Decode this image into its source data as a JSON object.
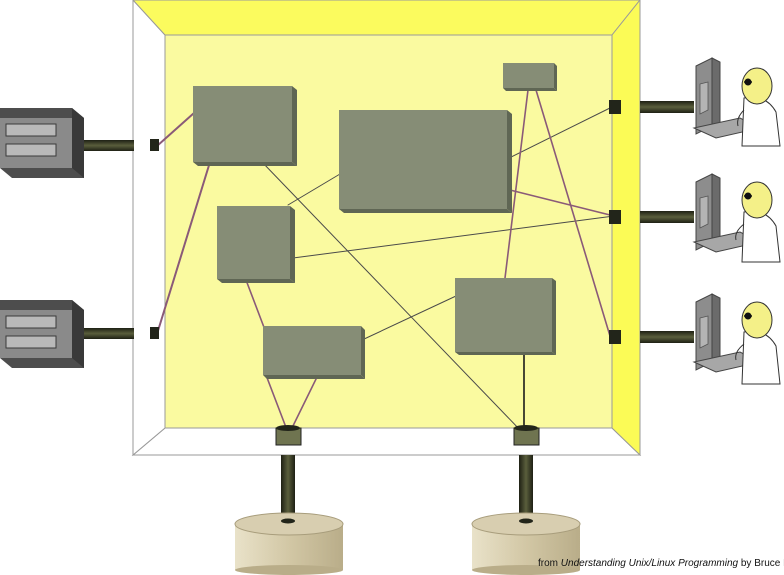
{
  "credit": {
    "prefix": "from",
    "book_title": "Understanding Unix/Linux Programming",
    "by": "by",
    "author": "Bruce Molay"
  },
  "colors": {
    "box_back_wall": "#fafaa0",
    "box_top_wall": "#fbfb5e",
    "box_right_wall": "#fbfb56",
    "box_floor": "#ffffff",
    "module_front": "#868d76",
    "module_side": "#5f6654",
    "connector_line_purple": "#8a5a78",
    "connector_line_grey": "#4a4a4a",
    "drum": "#d8ceb0",
    "cable": "#2f3222"
  },
  "icons": {
    "disk_drive": "disk-drive-icon",
    "terminal_user": "user-at-terminal-icon",
    "disk_platter": "disk-platter-icon"
  }
}
